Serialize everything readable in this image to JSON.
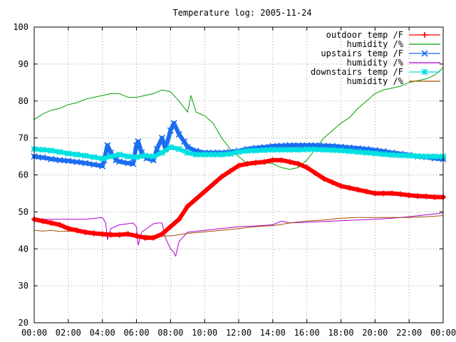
{
  "chart_data": {
    "type": "line",
    "title": "Temperature log: 2005-11-24",
    "xlabel": "",
    "ylabel": "",
    "xlim": [
      0,
      24
    ],
    "ylim": [
      20,
      100
    ],
    "x_ticks": [
      "00:00",
      "02:00",
      "04:00",
      "06:00",
      "08:00",
      "10:00",
      "12:00",
      "14:00",
      "16:00",
      "18:00",
      "20:00",
      "22:00",
      "00:00"
    ],
    "y_ticks": [
      "20",
      "30",
      "40",
      "50",
      "60",
      "70",
      "80",
      "90",
      "100"
    ],
    "grid": true,
    "legend_position": "top-right",
    "series": [
      {
        "name": "outdoor temp /F",
        "color": "#ff0000",
        "marker": "plus",
        "x": [
          0,
          0.5,
          1,
          1.5,
          2,
          2.5,
          3,
          3.5,
          4,
          4.5,
          5,
          5.5,
          6,
          6.5,
          7,
          7.5,
          8,
          8.5,
          9,
          9.5,
          10,
          10.5,
          11,
          11.5,
          12,
          12.5,
          13,
          13.5,
          14,
          14.5,
          15,
          15.5,
          16,
          16.5,
          17,
          17.5,
          18,
          18.5,
          19,
          19.5,
          20,
          20.5,
          21,
          21.5,
          22,
          22.5,
          23,
          23.5,
          24
        ],
        "values": [
          48,
          47.5,
          47,
          46.5,
          45.5,
          45,
          44.5,
          44.2,
          44,
          43.8,
          43.8,
          44,
          43.5,
          43,
          43,
          44,
          46,
          48,
          51.5,
          53.5,
          55.5,
          57.5,
          59.5,
          61,
          62.5,
          63,
          63.3,
          63.5,
          64,
          64,
          63.5,
          63,
          62,
          60.5,
          59,
          58,
          57,
          56.5,
          56,
          55.5,
          55,
          55,
          55,
          54.8,
          54.5,
          54.3,
          54.2,
          54,
          54
        ]
      },
      {
        "name": "humidity /%",
        "color": "#00a000",
        "marker": "none",
        "x": [
          0,
          0.5,
          1,
          1.5,
          2,
          2.5,
          3,
          3.5,
          4,
          4.5,
          5,
          5.5,
          6,
          6.5,
          7,
          7.5,
          8,
          8.5,
          9,
          9.2,
          9.5,
          10,
          10.5,
          11,
          11.5,
          12,
          12.5,
          13,
          13.5,
          14,
          14.5,
          15,
          15.5,
          16,
          16.5,
          17,
          17.5,
          18,
          18.5,
          19,
          19.5,
          20,
          20.5,
          21,
          21.5,
          22,
          22.5,
          23,
          23.5,
          24
        ],
        "values": [
          75,
          76.5,
          77.5,
          78,
          79,
          79.5,
          80.5,
          81,
          81.5,
          82,
          82,
          81,
          81,
          81.5,
          82,
          83,
          82.5,
          80,
          77,
          81.5,
          77,
          76,
          74,
          70,
          67,
          65,
          63,
          63.5,
          63.5,
          63,
          62,
          61.5,
          62,
          64,
          67,
          70,
          72,
          74,
          75.5,
          78,
          80,
          82,
          83,
          83.5,
          84,
          85,
          85.5,
          86,
          87,
          89
        ]
      },
      {
        "name": "upstairs temp /F",
        "color": "#1c6ef0",
        "marker": "x",
        "x": [
          0,
          0.5,
          1,
          1.5,
          2,
          2.5,
          3,
          3.5,
          4,
          4.1,
          4.3,
          4.5,
          4.8,
          5,
          5.5,
          5.8,
          6,
          6.1,
          6.3,
          6.6,
          7,
          7.2,
          7.5,
          7.7,
          8,
          8.2,
          8.5,
          8.8,
          9,
          9.5,
          10,
          10.5,
          11,
          11.5,
          12,
          12.5,
          13,
          13.5,
          14,
          14.5,
          15,
          15.5,
          16,
          16.5,
          17,
          17.5,
          18,
          18.5,
          19,
          19.5,
          20,
          20.5,
          21,
          21.5,
          22,
          22.5,
          23,
          23.5,
          24
        ],
        "values": [
          65,
          64.7,
          64.3,
          64,
          63.8,
          63.5,
          63.2,
          62.8,
          62.4,
          64,
          68,
          66,
          64,
          63.6,
          63.2,
          63,
          68,
          69,
          66,
          64.5,
          64,
          67,
          70,
          67,
          72,
          74,
          71,
          69,
          67.5,
          66.5,
          66,
          66,
          66,
          66.2,
          66.5,
          67,
          67.3,
          67.5,
          67.8,
          67.9,
          68,
          68,
          68,
          68,
          67.9,
          67.8,
          67.6,
          67.4,
          67.2,
          67,
          66.7,
          66.4,
          66,
          65.7,
          65.4,
          65,
          64.8,
          64.5,
          64.3
        ]
      },
      {
        "name": "humidity /%",
        "color": "#b000d0",
        "marker": "none",
        "x": [
          0,
          1,
          2,
          3,
          4,
          4.2,
          4.3,
          4.5,
          5,
          5.5,
          5.8,
          6,
          6.1,
          6.3,
          7,
          7.3,
          7.5,
          7.7,
          8,
          8.2,
          8.3,
          8.5,
          9,
          10,
          11,
          12,
          13,
          14,
          14.5,
          15,
          16,
          17,
          18,
          19,
          20,
          21,
          22,
          23,
          24
        ],
        "values": [
          48,
          48,
          48,
          48,
          48.5,
          47,
          42.5,
          45.5,
          46.5,
          46.8,
          47,
          46,
          41,
          44.5,
          46.8,
          47,
          47,
          43,
          40,
          39,
          38,
          42,
          44.5,
          45,
          45.5,
          46,
          46.2,
          46.5,
          47.5,
          47,
          47.2,
          47.4,
          47.6,
          47.8,
          48,
          48.3,
          48.7,
          49.2,
          49.7
        ]
      },
      {
        "name": "downstairs temp /F",
        "color": "#00e0e0",
        "marker": "star",
        "x": [
          0,
          0.5,
          1,
          1.5,
          2,
          2.5,
          3,
          3.5,
          4,
          4.5,
          5,
          5.5,
          6,
          6.5,
          7,
          7.5,
          8,
          8.5,
          9,
          9.5,
          10,
          10.5,
          11,
          11.5,
          12,
          12.5,
          13,
          13.5,
          14,
          14.5,
          15,
          15.5,
          16,
          16.5,
          17,
          17.5,
          18,
          18.5,
          19,
          19.5,
          20,
          20.5,
          21,
          21.5,
          22,
          22.5,
          23,
          23.5,
          24
        ],
        "values": [
          67,
          66.8,
          66.6,
          66.2,
          65.8,
          65.5,
          65.2,
          64.8,
          64.4,
          65,
          65.5,
          65,
          64.8,
          65.2,
          65,
          66,
          67.5,
          67,
          66,
          65.5,
          65.5,
          65.5,
          65.5,
          65.7,
          66.2,
          66.5,
          66.6,
          66.7,
          66.8,
          66.8,
          66.8,
          66.8,
          66.9,
          66.9,
          66.8,
          66.7,
          66.6,
          66.4,
          66.2,
          66,
          65.8,
          65.6,
          65.4,
          65.3,
          65.2,
          65.1,
          65,
          65,
          65
        ]
      },
      {
        "name": "humidity /%",
        "color": "#a05000",
        "marker": "none",
        "x": [
          0,
          0.5,
          1,
          1.5,
          2,
          3,
          4,
          5,
          6,
          7,
          8,
          8.5,
          9,
          10,
          11,
          12,
          13,
          14,
          14.5,
          15,
          16,
          17,
          18,
          19,
          20,
          21,
          22,
          23,
          24
        ],
        "values": [
          45,
          44.8,
          45,
          44.7,
          44.8,
          44.5,
          44.3,
          44,
          43.7,
          43.5,
          43.5,
          43.8,
          44.2,
          44.6,
          45,
          45.5,
          46,
          46.3,
          46.6,
          47,
          47.5,
          47.8,
          48.3,
          48.5,
          48.5,
          48.5,
          48.5,
          48.7,
          49
        ]
      }
    ]
  }
}
